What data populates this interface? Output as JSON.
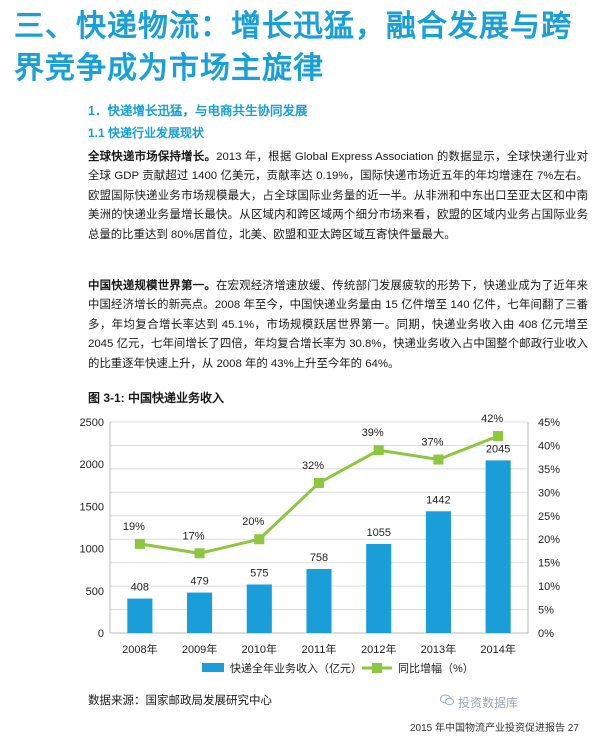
{
  "page": {
    "title": "三、快递物流：增长迅猛，融合发展与跨界竞争成为市场主旋律",
    "section1": "1．快递增长迅猛，与电商共生协同发展",
    "section11": "1.1 快递行业发展现状",
    "para1_lead": "全球快递市场保持增长。",
    "para1_body": "2013 年，根据 Global Express Association 的数据显示，全球快递行业对全球 GDP 贡献超过 1400 亿美元，贡献率达 0.19%，国际快递市场近五年的年均增速在 7%左右。欧盟国际快递业务市场规模最大，占全球国际业务量的近一半。从非洲和中东出口至亚太区和中南美洲的快递业务量增长最快。从区域内和跨区域两个细分市场来看，欧盟的区域内业务占国际业务总量的比重达到 80%居首位，北美、欧盟和亚太跨区域互寄快件量最大。",
    "para2_lead": "中国快递规模世界第一。",
    "para2_body": "在宏观经济增速放缓、传统部门发展疲软的形势下，快递业成为了近年来中国经济增长的新亮点。2008 年至今，中国快递业务量由 15 亿件增至 140 亿件，七年间翻了三番多，年均复合增长率达到 45.1%，市场规模跃居世界第一。同期，快递业务收入由 408 亿元增至 2045 亿元，七年间增长了四倍，年均复合增长率为 30.8%，快递业务收入占中国整个邮政行业收入的比重逐年快速上升，从 2008 年的 43%上升至今年的 64%。",
    "figure_title": "图 3-1: 中国快递业务收入",
    "source": "数据来源：国家邮政局发展研究中心",
    "footer": "2015 年中国物流产业投资促进报告   27",
    "watermark": "投资数据库"
  },
  "chart_data": {
    "type": "bar+line",
    "categories": [
      "2008年",
      "2009年",
      "2010年",
      "2011年",
      "2012年",
      "2013年",
      "2014年"
    ],
    "series": [
      {
        "name": "快递全年业务收入（亿元）",
        "type": "bar",
        "axis": "left",
        "values": [
          408,
          479,
          575,
          758,
          1055,
          1442,
          2045
        ],
        "labels": [
          "408",
          "479",
          "575",
          "758",
          "1055",
          "1442",
          "2045"
        ]
      },
      {
        "name": "同比增幅（%）",
        "type": "line",
        "axis": "right",
        "values": [
          19,
          17,
          20,
          32,
          39,
          37,
          42
        ],
        "labels": [
          "19%",
          "17%",
          "20%",
          "32%",
          "39%",
          "37%",
          "42%"
        ]
      }
    ],
    "y_left": {
      "min": 0,
      "max": 2500,
      "ticks": [
        "0",
        "500",
        "1000",
        "1500",
        "2000",
        "2500"
      ]
    },
    "y_right": {
      "min": 0,
      "max": 45,
      "ticks": [
        "0%",
        "5%",
        "10%",
        "15%",
        "20%",
        "25%",
        "30%",
        "35%",
        "40%",
        "45%"
      ]
    },
    "grid": true,
    "legend": "bottom",
    "colors": {
      "bar": "#1a9ed9",
      "line": "#8dc63f"
    }
  }
}
